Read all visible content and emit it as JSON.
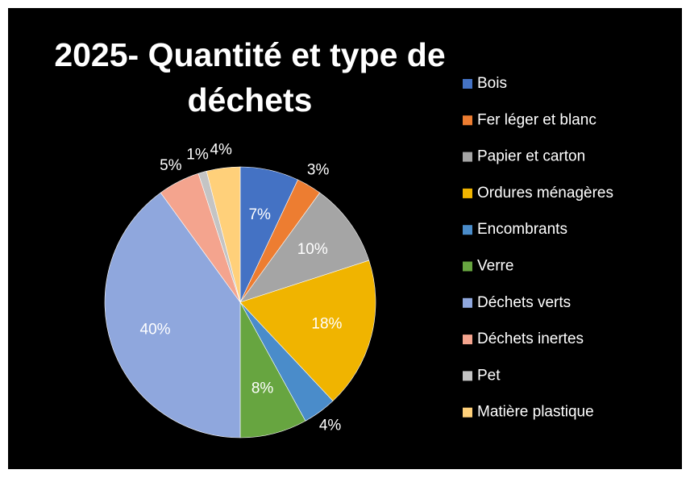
{
  "chart_data": {
    "type": "pie",
    "title": "2025- Quantité et type de déchets",
    "categories": [
      "Bois",
      "Fer léger et blanc",
      "Papier et carton",
      "Ordures ménagères",
      "Encombrants",
      "Verre",
      "Déchets verts",
      "Déchets inertes",
      "Pet",
      "Matière plastique"
    ],
    "values": [
      7,
      3,
      10,
      18,
      4,
      8,
      40,
      5,
      1,
      4
    ],
    "value_labels": [
      "7%",
      "3%",
      "10%",
      "18%",
      "4%",
      "8%",
      "40%",
      "5%",
      "1%",
      "4%"
    ],
    "colors": [
      "#4472c4",
      "#ed7d31",
      "#a5a5a5",
      "#f0b400",
      "#4a8cca",
      "#67a540",
      "#8fa7dd",
      "#f4a48e",
      "#c4c4c4",
      "#ffd07a"
    ],
    "legend": "right"
  }
}
